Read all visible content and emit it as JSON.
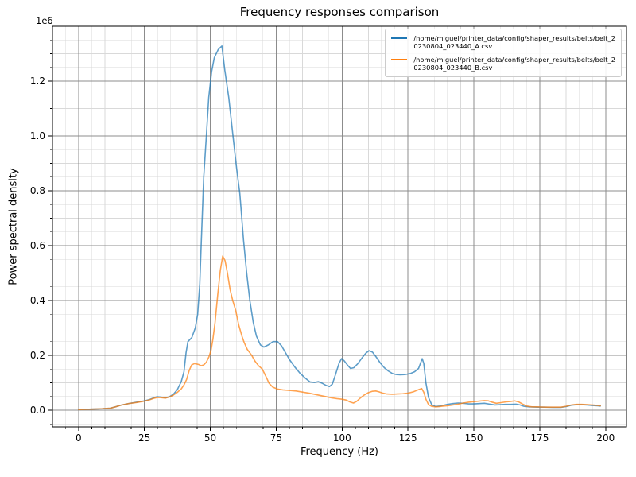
{
  "figure": {
    "title": "Frequency responses comparison",
    "xlabel": "Frequency (Hz)",
    "ylabel": "Power spectral density",
    "y_offset_label": "1e6"
  },
  "legend": {
    "position": "upper right",
    "items": [
      {
        "color": "#1f77b4",
        "label": "/home/miguel/printer_data/config/shaper_results/belts/belt_20230804_023440_A.csv",
        "lines": [
          "/home/miguel/printer_data/config/shaper_results/belts/belt_2",
          "0230804_023440_A.csv"
        ]
      },
      {
        "color": "#ff7f0e",
        "label": "/home/miguel/printer_data/config/shaper_results/belts/belt_20230804_023440_B.csv",
        "lines": [
          "/home/miguel/printer_data/config/shaper_results/belts/belt_2",
          "0230804_023440_B.csv"
        ]
      }
    ]
  },
  "chart_data": {
    "type": "line",
    "title": "Frequency responses comparison",
    "xlabel": "Frequency (Hz)",
    "ylabel": "Power spectral density",
    "y_scale_note": "y values in units of 1e6 (axis offset label '1e6')",
    "xlim": [
      -9.9,
      207.9
    ],
    "ylim_e6": [
      -0.061,
      1.4
    ],
    "grid": "major+minor",
    "x_major_ticks": [
      0,
      25,
      50,
      75,
      100,
      125,
      150,
      175,
      200
    ],
    "x_tick_labels": [
      "0",
      "25",
      "50",
      "75",
      "100",
      "125",
      "150",
      "175",
      "200"
    ],
    "x_minor_step": 5,
    "y_major_ticks_e6": [
      0.0,
      0.2,
      0.4,
      0.6,
      0.8,
      1.0,
      1.2
    ],
    "y_tick_labels": [
      "0.0",
      "0.2",
      "0.4",
      "0.6",
      "0.8",
      "1.0",
      "1.2"
    ],
    "y_minor_step_e6": 0.05,
    "legend_position": "upper right",
    "series": [
      {
        "name": "/home/miguel/printer_data/config/shaper_results/belts/belt_20230804_023440_A.csv",
        "color": "#1f77b4",
        "opacity": 0.72,
        "peak": {
          "freq_hz": 54.5,
          "psd_e6": 1.328
        },
        "points_e6": [
          [
            0,
            0.002
          ],
          [
            3,
            0.003
          ],
          [
            6,
            0.004
          ],
          [
            9,
            0.005
          ],
          [
            12,
            0.007
          ],
          [
            14,
            0.012
          ],
          [
            16,
            0.018
          ],
          [
            19,
            0.024
          ],
          [
            22,
            0.029
          ],
          [
            25,
            0.034
          ],
          [
            27,
            0.039
          ],
          [
            28.5,
            0.045
          ],
          [
            29.8,
            0.049
          ],
          [
            31,
            0.048
          ],
          [
            33,
            0.045
          ],
          [
            34.5,
            0.049
          ],
          [
            36,
            0.058
          ],
          [
            37.5,
            0.075
          ],
          [
            39,
            0.105
          ],
          [
            40,
            0.14
          ],
          [
            40.8,
            0.21
          ],
          [
            41.5,
            0.25
          ],
          [
            43,
            0.265
          ],
          [
            44.3,
            0.3
          ],
          [
            45.2,
            0.35
          ],
          [
            46,
            0.46
          ],
          [
            46.6,
            0.62
          ],
          [
            47.5,
            0.85
          ],
          [
            48.5,
            1.0
          ],
          [
            49.4,
            1.14
          ],
          [
            50.5,
            1.235
          ],
          [
            51.5,
            1.285
          ],
          [
            53,
            1.315
          ],
          [
            54.4,
            1.328
          ],
          [
            55.5,
            1.24
          ],
          [
            57,
            1.14
          ],
          [
            58.6,
            1.0
          ],
          [
            60,
            0.88
          ],
          [
            61.2,
            0.79
          ],
          [
            62.6,
            0.62
          ],
          [
            63.8,
            0.5
          ],
          [
            65,
            0.4
          ],
          [
            66.3,
            0.32
          ],
          [
            67.5,
            0.27
          ],
          [
            69,
            0.238
          ],
          [
            70.3,
            0.23
          ],
          [
            72,
            0.238
          ],
          [
            73.8,
            0.25
          ],
          [
            75.5,
            0.25
          ],
          [
            77,
            0.235
          ],
          [
            78.5,
            0.21
          ],
          [
            80,
            0.185
          ],
          [
            82,
            0.158
          ],
          [
            84,
            0.135
          ],
          [
            86,
            0.117
          ],
          [
            87.8,
            0.103
          ],
          [
            89.5,
            0.101
          ],
          [
            91,
            0.104
          ],
          [
            92.5,
            0.098
          ],
          [
            94,
            0.09
          ],
          [
            95.2,
            0.086
          ],
          [
            96.3,
            0.095
          ],
          [
            97.5,
            0.13
          ],
          [
            98.8,
            0.17
          ],
          [
            99.8,
            0.188
          ],
          [
            100.8,
            0.18
          ],
          [
            102,
            0.165
          ],
          [
            103.2,
            0.152
          ],
          [
            104.5,
            0.155
          ],
          [
            106,
            0.17
          ],
          [
            107.5,
            0.19
          ],
          [
            109,
            0.208
          ],
          [
            110.2,
            0.217
          ],
          [
            111.5,
            0.212
          ],
          [
            113,
            0.193
          ],
          [
            114.5,
            0.172
          ],
          [
            116,
            0.155
          ],
          [
            117.5,
            0.143
          ],
          [
            119,
            0.134
          ],
          [
            120.5,
            0.13
          ],
          [
            122,
            0.129
          ],
          [
            124,
            0.13
          ],
          [
            126,
            0.134
          ],
          [
            127.5,
            0.14
          ],
          [
            129,
            0.152
          ],
          [
            130.4,
            0.188
          ],
          [
            131,
            0.17
          ],
          [
            131.8,
            0.1
          ],
          [
            132.8,
            0.046
          ],
          [
            134,
            0.02
          ],
          [
            135.5,
            0.013
          ],
          [
            137,
            0.015
          ],
          [
            138.5,
            0.018
          ],
          [
            140,
            0.021
          ],
          [
            142,
            0.024
          ],
          [
            144,
            0.026
          ],
          [
            146,
            0.025
          ],
          [
            148,
            0.023
          ],
          [
            150,
            0.023
          ],
          [
            152,
            0.024
          ],
          [
            154,
            0.025
          ],
          [
            156,
            0.022
          ],
          [
            158,
            0.019
          ],
          [
            160,
            0.02
          ],
          [
            162,
            0.021
          ],
          [
            164,
            0.021
          ],
          [
            166,
            0.022
          ],
          [
            167.5,
            0.019
          ],
          [
            169,
            0.014
          ],
          [
            171,
            0.012
          ],
          [
            174,
            0.011
          ],
          [
            177,
            0.011
          ],
          [
            180,
            0.01
          ],
          [
            183,
            0.01
          ],
          [
            185,
            0.013
          ],
          [
            187,
            0.018
          ],
          [
            189,
            0.02
          ],
          [
            191,
            0.02
          ],
          [
            193,
            0.019
          ],
          [
            195,
            0.017
          ],
          [
            197,
            0.016
          ],
          [
            198,
            0.015
          ]
        ]
      },
      {
        "name": "/home/miguel/printer_data/config/shaper_results/belts/belt_20230804_023440_B.csv",
        "color": "#ff7f0e",
        "opacity": 0.72,
        "peak": {
          "freq_hz": 54.7,
          "psd_e6": 0.562
        },
        "points_e6": [
          [
            0,
            0.002
          ],
          [
            3,
            0.003
          ],
          [
            6,
            0.004
          ],
          [
            9,
            0.005
          ],
          [
            12,
            0.007
          ],
          [
            14,
            0.012
          ],
          [
            16,
            0.018
          ],
          [
            19,
            0.024
          ],
          [
            22,
            0.028
          ],
          [
            25,
            0.033
          ],
          [
            27,
            0.038
          ],
          [
            28.5,
            0.043
          ],
          [
            29.8,
            0.046
          ],
          [
            31,
            0.046
          ],
          [
            33,
            0.044
          ],
          [
            34.5,
            0.048
          ],
          [
            36,
            0.055
          ],
          [
            37.5,
            0.065
          ],
          [
            39,
            0.078
          ],
          [
            40,
            0.092
          ],
          [
            41,
            0.112
          ],
          [
            42,
            0.145
          ],
          [
            42.9,
            0.165
          ],
          [
            44,
            0.17
          ],
          [
            45.5,
            0.167
          ],
          [
            46.5,
            0.162
          ],
          [
            47.5,
            0.165
          ],
          [
            48.5,
            0.175
          ],
          [
            49.5,
            0.195
          ],
          [
            50.3,
            0.22
          ],
          [
            51,
            0.26
          ],
          [
            51.8,
            0.32
          ],
          [
            52.8,
            0.42
          ],
          [
            53.8,
            0.51
          ],
          [
            54.7,
            0.562
          ],
          [
            55.6,
            0.545
          ],
          [
            56.5,
            0.5
          ],
          [
            57.5,
            0.44
          ],
          [
            58.5,
            0.4
          ],
          [
            59.6,
            0.365
          ],
          [
            60.8,
            0.31
          ],
          [
            62,
            0.27
          ],
          [
            62.8,
            0.248
          ],
          [
            64,
            0.222
          ],
          [
            65.7,
            0.2
          ],
          [
            67,
            0.178
          ],
          [
            68.3,
            0.162
          ],
          [
            69.7,
            0.15
          ],
          [
            71,
            0.125
          ],
          [
            72.3,
            0.098
          ],
          [
            73.7,
            0.084
          ],
          [
            75.5,
            0.077
          ],
          [
            77.5,
            0.074
          ],
          [
            80,
            0.072
          ],
          [
            82.5,
            0.07
          ],
          [
            85,
            0.066
          ],
          [
            87.5,
            0.062
          ],
          [
            90,
            0.057
          ],
          [
            92,
            0.053
          ],
          [
            94,
            0.049
          ],
          [
            96,
            0.045
          ],
          [
            98,
            0.042
          ],
          [
            100,
            0.04
          ],
          [
            101.5,
            0.037
          ],
          [
            103,
            0.03
          ],
          [
            104.3,
            0.026
          ],
          [
            105.5,
            0.032
          ],
          [
            107,
            0.045
          ],
          [
            108.5,
            0.056
          ],
          [
            110,
            0.064
          ],
          [
            111.5,
            0.069
          ],
          [
            112.8,
            0.07
          ],
          [
            114,
            0.067
          ],
          [
            115.5,
            0.062
          ],
          [
            117,
            0.059
          ],
          [
            119,
            0.058
          ],
          [
            121,
            0.059
          ],
          [
            123,
            0.06
          ],
          [
            125,
            0.062
          ],
          [
            127,
            0.067
          ],
          [
            128.8,
            0.074
          ],
          [
            130.2,
            0.079
          ],
          [
            131,
            0.065
          ],
          [
            131.8,
            0.04
          ],
          [
            132.8,
            0.02
          ],
          [
            134,
            0.014
          ],
          [
            135.5,
            0.012
          ],
          [
            137,
            0.013
          ],
          [
            138.5,
            0.015
          ],
          [
            140,
            0.016
          ],
          [
            142,
            0.019
          ],
          [
            144,
            0.022
          ],
          [
            146,
            0.026
          ],
          [
            148,
            0.029
          ],
          [
            150,
            0.031
          ],
          [
            152,
            0.033
          ],
          [
            154,
            0.035
          ],
          [
            155.5,
            0.034
          ],
          [
            157,
            0.029
          ],
          [
            158.5,
            0.025
          ],
          [
            160,
            0.027
          ],
          [
            162,
            0.03
          ],
          [
            164,
            0.032
          ],
          [
            165.5,
            0.034
          ],
          [
            167,
            0.03
          ],
          [
            168.5,
            0.022
          ],
          [
            170,
            0.015
          ],
          [
            172,
            0.012
          ],
          [
            174,
            0.012
          ],
          [
            177,
            0.011
          ],
          [
            180,
            0.011
          ],
          [
            183,
            0.011
          ],
          [
            185,
            0.014
          ],
          [
            187,
            0.019
          ],
          [
            189,
            0.021
          ],
          [
            191,
            0.021
          ],
          [
            193,
            0.02
          ],
          [
            195,
            0.019
          ],
          [
            197,
            0.017
          ],
          [
            198,
            0.016
          ]
        ]
      }
    ],
    "colors": {
      "series_a": "#1f77b4",
      "series_b": "#ff7f0e",
      "grid_major": "#8c8c8c",
      "grid_minor": "#d9d9d9",
      "spine": "#000000",
      "background": "#ffffff"
    }
  }
}
